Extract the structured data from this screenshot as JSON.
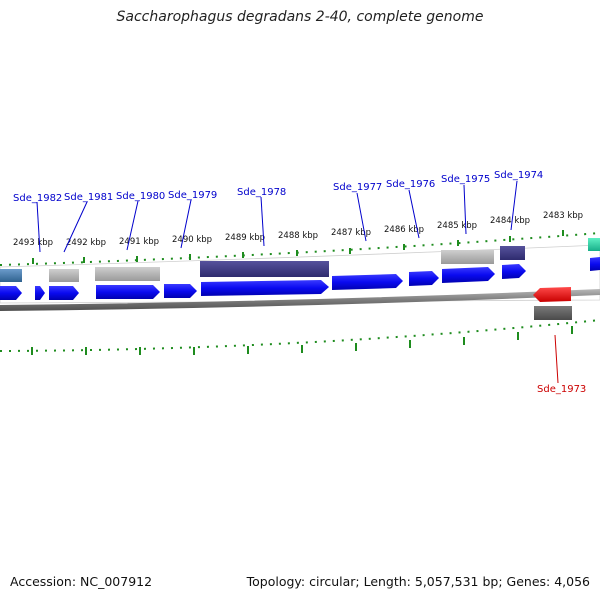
{
  "title": "Saccharophagus degradans 2-40, complete genome",
  "footer": {
    "accession": "Accession: NC_007912",
    "summary": "Topology: circular; Length: 5,057,531 bp; Genes: 4,056"
  },
  "ticks": [
    "2493 kbp",
    "2492 kbp",
    "2491 kbp",
    "2490 kbp",
    "2489 kbp",
    "2488 kbp",
    "2487 kbp",
    "2486 kbp",
    "2485 kbp",
    "2484 kbp",
    "2483 kbp"
  ],
  "genes": [
    {
      "label": "Sde_1982",
      "color": "#0000cc"
    },
    {
      "label": "Sde_1981",
      "color": "#0000cc"
    },
    {
      "label": "Sde_1980",
      "color": "#0000cc"
    },
    {
      "label": "Sde_1979",
      "color": "#0000cc"
    },
    {
      "label": "Sde_1978",
      "color": "#0000cc"
    },
    {
      "label": "Sde_1977",
      "color": "#0000cc"
    },
    {
      "label": "Sde_1976",
      "color": "#0000cc"
    },
    {
      "label": "Sde_1975",
      "color": "#0000cc"
    },
    {
      "label": "Sde_1974",
      "color": "#0000cc"
    },
    {
      "label": "Sde_1973",
      "color": "#cc0000"
    }
  ],
  "colors": {
    "forward_gene": "#0a0af0",
    "reverse_gene": "#ee0000",
    "tick": "#1e8c1e",
    "backbone": "#808080",
    "track_dark": "#3d3a85",
    "track_gray": "#b4b4b4",
    "track_steel": "#4a7fae",
    "track_teal": "#2ed6a8"
  }
}
